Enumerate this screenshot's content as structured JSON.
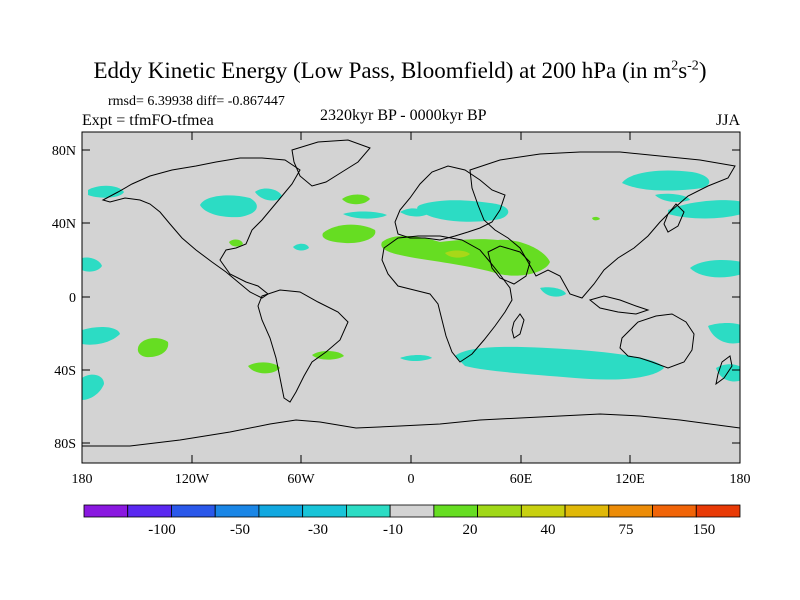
{
  "title": {
    "main": "Eddy Kinetic Energy (Low Pass, Bloomfield) at 200 hPa (in m",
    "sup1": "2",
    "mid": "s",
    "sup2": "-2",
    "end": ")"
  },
  "stats": "rmsd= 6.39938 diff= -0.867447",
  "experiment": "Expt = tfmFO-tfmea",
  "period": "2320kyr BP - 0000kyr BP",
  "season": "JJA",
  "map": {
    "lat_labels": [
      "80N",
      "40N",
      "0",
      "40S",
      "80S"
    ],
    "lon_labels": [
      "180",
      "120W",
      "60W",
      "0",
      "60E",
      "120E",
      "180"
    ],
    "land_color": "#d3d3d3",
    "coast_color": "#000000"
  },
  "colorbar": {
    "colors": [
      "#8a18e0",
      "#5a28f0",
      "#2a58ea",
      "#1a86e6",
      "#12a8e0",
      "#18c4d8",
      "#2cdcc4",
      "#d3d3d3",
      "#66dd22",
      "#a0d818",
      "#c8d010",
      "#e0b808",
      "#ec8c08",
      "#f06408",
      "#e83a06"
    ],
    "labels": [
      "-100",
      "-50",
      "-30",
      "-10",
      "20",
      "40",
      "75",
      "150"
    ]
  },
  "anomalies": {
    "negative_color": "#2cdcc4",
    "positive_color": "#66dd22",
    "peak_color": "#a8d818"
  }
}
